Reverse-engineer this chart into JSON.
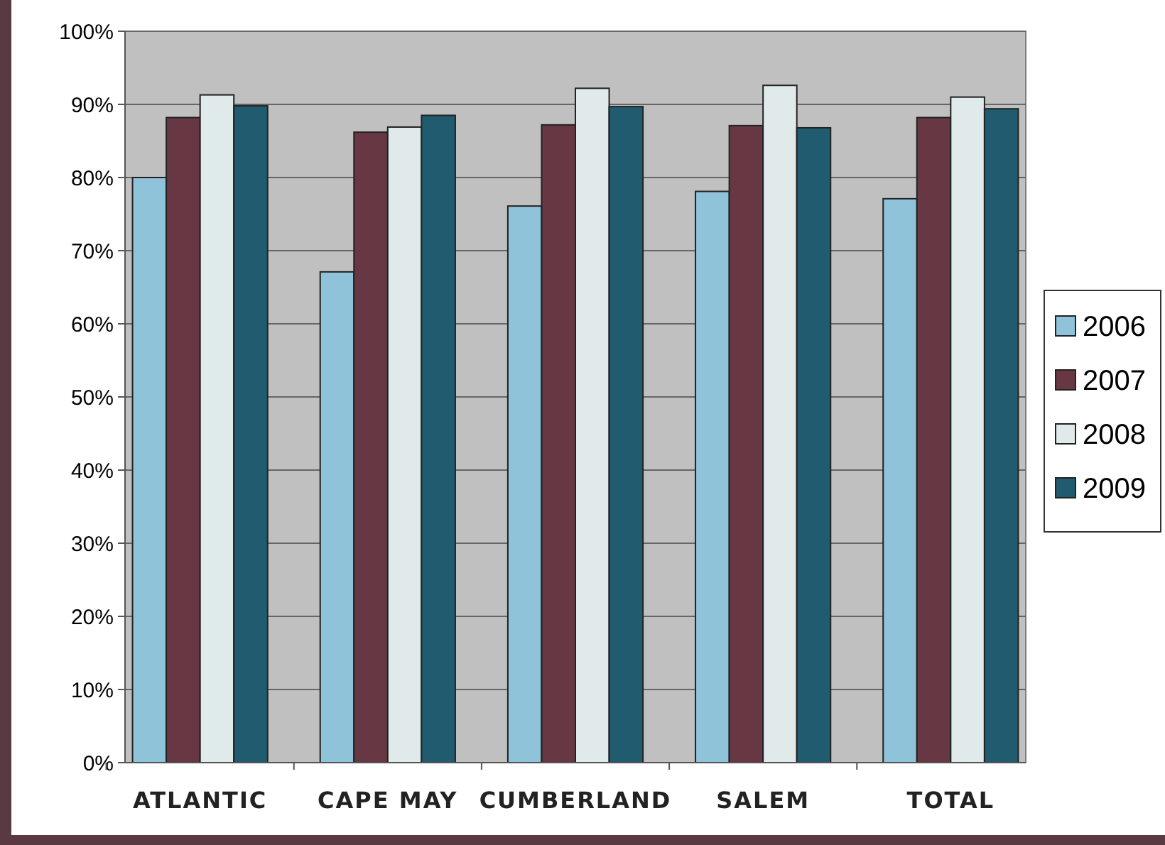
{
  "chart_data": {
    "type": "bar",
    "categories": [
      "ATLANTIC",
      "CAPE MAY",
      "CUMBERLAND",
      "SALEM",
      "TOTAL"
    ],
    "series": [
      {
        "name": "2006",
        "color": "#8fc3da",
        "values": [
          80,
          67.1,
          76.1,
          78.1,
          77.1
        ]
      },
      {
        "name": "2007",
        "color": "#673844",
        "values": [
          88.2,
          86.2,
          87.2,
          87.1,
          88.2
        ]
      },
      {
        "name": "2008",
        "color": "#e1eaea",
        "values": [
          91.3,
          86.9,
          92.2,
          92.6,
          91.0
        ]
      },
      {
        "name": "2009",
        "color": "#215b70",
        "values": [
          89.8,
          88.5,
          89.7,
          86.8,
          89.4
        ]
      }
    ],
    "ylim": [
      0,
      100
    ],
    "yticks": [
      {
        "value": 0,
        "label": "0%"
      },
      {
        "value": 10,
        "label": "10%"
      },
      {
        "value": 20,
        "label": "20%"
      },
      {
        "value": 30,
        "label": "30%"
      },
      {
        "value": 40,
        "label": "40%"
      },
      {
        "value": 50,
        "label": "50%"
      },
      {
        "value": 60,
        "label": "60%"
      },
      {
        "value": 70,
        "label": "70%"
      },
      {
        "value": 80,
        "label": "80%"
      },
      {
        "value": 90,
        "label": "90%"
      },
      {
        "value": 100,
        "label": "100%"
      }
    ],
    "grid": "y",
    "legend": "right"
  }
}
